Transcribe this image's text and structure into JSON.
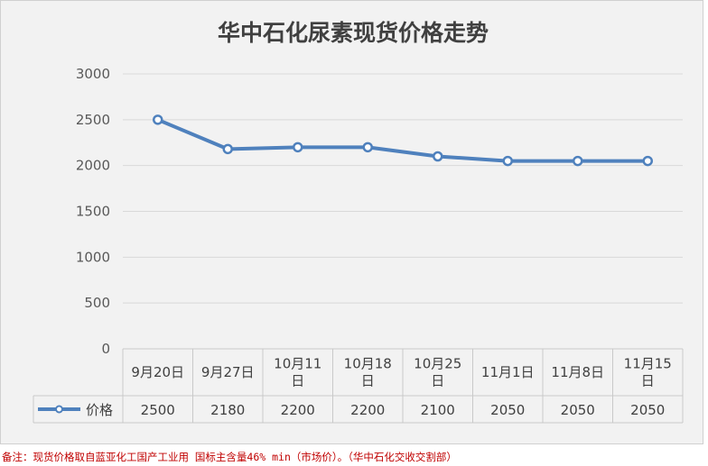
{
  "chart_data": {
    "type": "line",
    "title": "华中石化尿素现货价格走势",
    "categories": [
      [
        "9月20日"
      ],
      [
        "9月27日"
      ],
      [
        "10月11",
        "日"
      ],
      [
        "10月18",
        "日"
      ],
      [
        "10月25",
        "日"
      ],
      [
        "11月1日"
      ],
      [
        "11月8日"
      ],
      [
        "11月15",
        "日"
      ]
    ],
    "series": [
      {
        "name": "价格",
        "values": [
          2500,
          2180,
          2200,
          2200,
          2100,
          2050,
          2050,
          2050
        ],
        "color": "#4f81bd"
      }
    ],
    "yticks": [
      0,
      500,
      1000,
      1500,
      2000,
      2500,
      3000
    ],
    "ylim": [
      0,
      3000
    ],
    "grid": true,
    "legend": "data-table",
    "data_table": true
  },
  "footnote": "备注：现货价格取自蓝亚化工国产工业用 国标主含量46% min（市场价）。（华中石化交收交割部）"
}
